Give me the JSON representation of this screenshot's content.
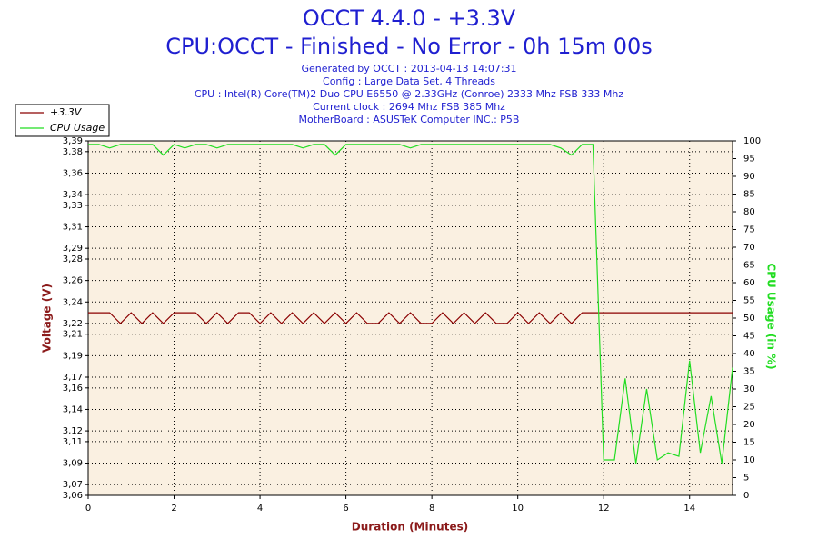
{
  "chart_data": {
    "type": "line",
    "title": "OCCT 4.4.0 - +3.3V",
    "subtitle": "CPU:OCCT - Finished - No Error - 0h 15m 00s",
    "info_lines": [
      "Generated by OCCT : 2013-04-13 14:07:31",
      "Config : Large Data Set, 4 Threads",
      "CPU : Intel(R) Core(TM)2 Duo CPU E6550 @ 2.33GHz (Conroe) 2333 Mhz FSB 333 Mhz",
      "Current clock : 2694 Mhz FSB 385 Mhz",
      "MotherBoard : ASUSTeK Computer INC.: P5B"
    ],
    "x_label": "Duration (Minutes)",
    "y_label": "Voltage (V)",
    "y2_label": "CPU Usage (in %)",
    "xlim": [
      0,
      15
    ],
    "xticks": [
      0,
      2,
      4,
      6,
      8,
      10,
      12,
      14
    ],
    "ylim": [
      3.06,
      3.39
    ],
    "yticks": [
      {
        "value": 3.06,
        "label": "3,06"
      },
      {
        "value": 3.07,
        "label": "3,07"
      },
      {
        "value": 3.09,
        "label": "3,09"
      },
      {
        "value": 3.11,
        "label": "3,11"
      },
      {
        "value": 3.12,
        "label": "3,12"
      },
      {
        "value": 3.14,
        "label": "3,14"
      },
      {
        "value": 3.16,
        "label": "3,16"
      },
      {
        "value": 3.17,
        "label": "3,17"
      },
      {
        "value": 3.19,
        "label": "3,19"
      },
      {
        "value": 3.21,
        "label": "3,21"
      },
      {
        "value": 3.22,
        "label": "3,22"
      },
      {
        "value": 3.24,
        "label": "3,24"
      },
      {
        "value": 3.26,
        "label": "3,26"
      },
      {
        "value": 3.28,
        "label": "3,28"
      },
      {
        "value": 3.29,
        "label": "3,29"
      },
      {
        "value": 3.31,
        "label": "3,31"
      },
      {
        "value": 3.33,
        "label": "3,33"
      },
      {
        "value": 3.34,
        "label": "3,34"
      },
      {
        "value": 3.36,
        "label": "3,36"
      },
      {
        "value": 3.38,
        "label": "3,38"
      },
      {
        "value": 3.39,
        "label": "3,39"
      }
    ],
    "y2lim": [
      0,
      100
    ],
    "y2ticks": [
      0,
      5,
      10,
      15,
      20,
      25,
      30,
      35,
      40,
      45,
      50,
      55,
      60,
      65,
      70,
      75,
      80,
      85,
      90,
      95,
      100
    ],
    "grid": true,
    "legend": "top-left",
    "x": [
      0,
      0.25,
      0.5,
      0.75,
      1,
      1.25,
      1.5,
      1.75,
      2,
      2.25,
      2.5,
      2.75,
      3,
      3.25,
      3.5,
      3.75,
      4,
      4.25,
      4.5,
      4.75,
      5,
      5.25,
      5.5,
      5.75,
      6,
      6.25,
      6.5,
      6.75,
      7,
      7.25,
      7.5,
      7.75,
      8,
      8.25,
      8.5,
      8.75,
      9,
      9.25,
      9.5,
      9.75,
      10,
      10.25,
      10.5,
      10.75,
      11,
      11.25,
      11.5,
      11.75,
      12,
      12.25,
      12.5,
      12.75,
      13,
      13.25,
      13.5,
      13.75,
      14,
      14.25,
      14.5,
      14.75,
      15
    ],
    "series": [
      {
        "name": "+3.3V",
        "color": "#8b0000",
        "axis": "y",
        "values": [
          3.23,
          3.23,
          3.23,
          3.22,
          3.23,
          3.22,
          3.23,
          3.22,
          3.23,
          3.23,
          3.23,
          3.22,
          3.23,
          3.22,
          3.23,
          3.23,
          3.22,
          3.23,
          3.22,
          3.23,
          3.22,
          3.23,
          3.22,
          3.23,
          3.22,
          3.23,
          3.22,
          3.22,
          3.23,
          3.22,
          3.23,
          3.22,
          3.22,
          3.23,
          3.22,
          3.23,
          3.22,
          3.23,
          3.22,
          3.22,
          3.23,
          3.22,
          3.23,
          3.22,
          3.23,
          3.22,
          3.23,
          3.23,
          3.23,
          3.23,
          3.23,
          3.23,
          3.23,
          3.23,
          3.23,
          3.23,
          3.23,
          3.23,
          3.23,
          3.23,
          3.23
        ]
      },
      {
        "name": "CPU Usage",
        "color": "#22dd22",
        "axis": "y2",
        "values": [
          99,
          99,
          98,
          99,
          99,
          99,
          99,
          96,
          99,
          98,
          99,
          99,
          98,
          99,
          99,
          99,
          99,
          99,
          99,
          99,
          98,
          99,
          99,
          96,
          99,
          99,
          99,
          99,
          99,
          99,
          98,
          99,
          99,
          99,
          99,
          99,
          99,
          99,
          99,
          99,
          99,
          99,
          99,
          99,
          98,
          96,
          99,
          99,
          10,
          10,
          33,
          9,
          30,
          10,
          12,
          11,
          38,
          12,
          28,
          9,
          36
        ]
      }
    ]
  }
}
